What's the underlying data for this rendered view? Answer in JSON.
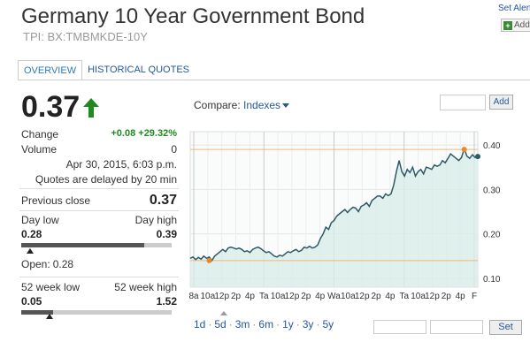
{
  "header": {
    "title": "Germany 10 Year Government Bond",
    "subtitle": "TPI: BX:TMBMKDE-10Y",
    "set_alert": "Set Alert",
    "add_label": "Add"
  },
  "tabs": [
    {
      "label": "OVERVIEW",
      "active": true
    },
    {
      "label": "HISTORICAL QUOTES",
      "active": false
    }
  ],
  "quote": {
    "price": "0.37",
    "direction": "up",
    "change_label": "Change",
    "change_value": "+0.08 +29.32%",
    "volume_label": "Volume",
    "volume_value": "0",
    "timestamp": "Apr 30, 2015, 6:03 p.m.",
    "delay_note": "Quotes are delayed by 20 min",
    "prev_close_label": "Previous close",
    "prev_close_value": "0.37",
    "day_low_label": "Day low",
    "day_high_label": "Day high",
    "day_low": "0.28",
    "day_high": "0.39",
    "day_position": 0.06,
    "day_fill": 0.82,
    "open_label": "Open:",
    "open_value": "0.28",
    "wk52_low_label": "52 week low",
    "wk52_high_label": "52 week high",
    "wk52_low": "0.05",
    "wk52_high": "1.52",
    "wk52_position": 0.19,
    "wk52_fill": 0.21
  },
  "compare": {
    "label": "Compare:",
    "selected": "Indexes",
    "add_button": "Add"
  },
  "ranges": [
    "1d",
    "5d",
    "3m",
    "6m",
    "1y",
    "3y",
    "5y"
  ],
  "set_button": "Set",
  "colors": {
    "accent": "#25569c",
    "positive": "#1f8a1f",
    "line": "#2e5a67",
    "area": "#d9ece9",
    "ref_line": "#f0b87a"
  },
  "chart_data": {
    "type": "area",
    "x_tick_labels": [
      "8a",
      "10a",
      "12p",
      "2p",
      "4p",
      "Ta",
      "10a",
      "12p",
      "2p",
      "4p",
      "Wa",
      "10a",
      "12p",
      "2p",
      "4p",
      "Ta",
      "10a",
      "12p",
      "2p",
      "4p",
      "F"
    ],
    "y_tick_labels": [
      "0.40",
      "0.30",
      "0.20",
      "0.10"
    ],
    "ylim": [
      0.08,
      0.43
    ],
    "reference_lines": [
      0.39,
      0.14
    ],
    "grid": true,
    "series": [
      {
        "values": [
          0.145,
          0.148,
          0.142,
          0.147,
          0.143,
          0.15,
          0.145,
          0.148,
          0.14,
          0.15,
          0.155,
          0.16,
          0.165,
          0.16,
          0.168,
          0.17,
          0.168,
          0.166,
          0.168,
          0.165,
          0.16,
          0.162,
          0.158,
          0.165,
          0.168,
          0.17,
          0.167,
          0.162,
          0.158,
          0.16,
          0.155,
          0.15,
          0.148,
          0.152,
          0.15,
          0.155,
          0.16,
          0.158,
          0.162,
          0.165,
          0.16,
          0.163,
          0.17,
          0.168,
          0.172,
          0.168,
          0.17,
          0.175,
          0.19,
          0.2,
          0.215,
          0.21,
          0.225,
          0.23,
          0.24,
          0.245,
          0.25,
          0.255,
          0.248,
          0.255,
          0.26,
          0.258,
          0.25,
          0.262,
          0.265,
          0.27,
          0.262,
          0.275,
          0.28,
          0.285,
          0.285,
          0.28,
          0.29,
          0.286,
          0.29,
          0.31,
          0.34,
          0.365,
          0.34,
          0.33,
          0.345,
          0.338,
          0.35,
          0.33,
          0.34,
          0.345,
          0.335,
          0.35,
          0.348,
          0.345,
          0.355,
          0.352,
          0.355,
          0.365,
          0.36,
          0.37,
          0.38,
          0.375,
          0.37,
          0.365,
          0.372,
          0.392,
          0.375,
          0.37,
          0.378,
          0.372,
          0.374
        ]
      }
    ],
    "highlight_points": [
      {
        "x_index": 101,
        "y": 0.39,
        "color": "#e8892a"
      },
      {
        "x_index": 7,
        "y": 0.14,
        "color": "#e8892a"
      }
    ]
  }
}
